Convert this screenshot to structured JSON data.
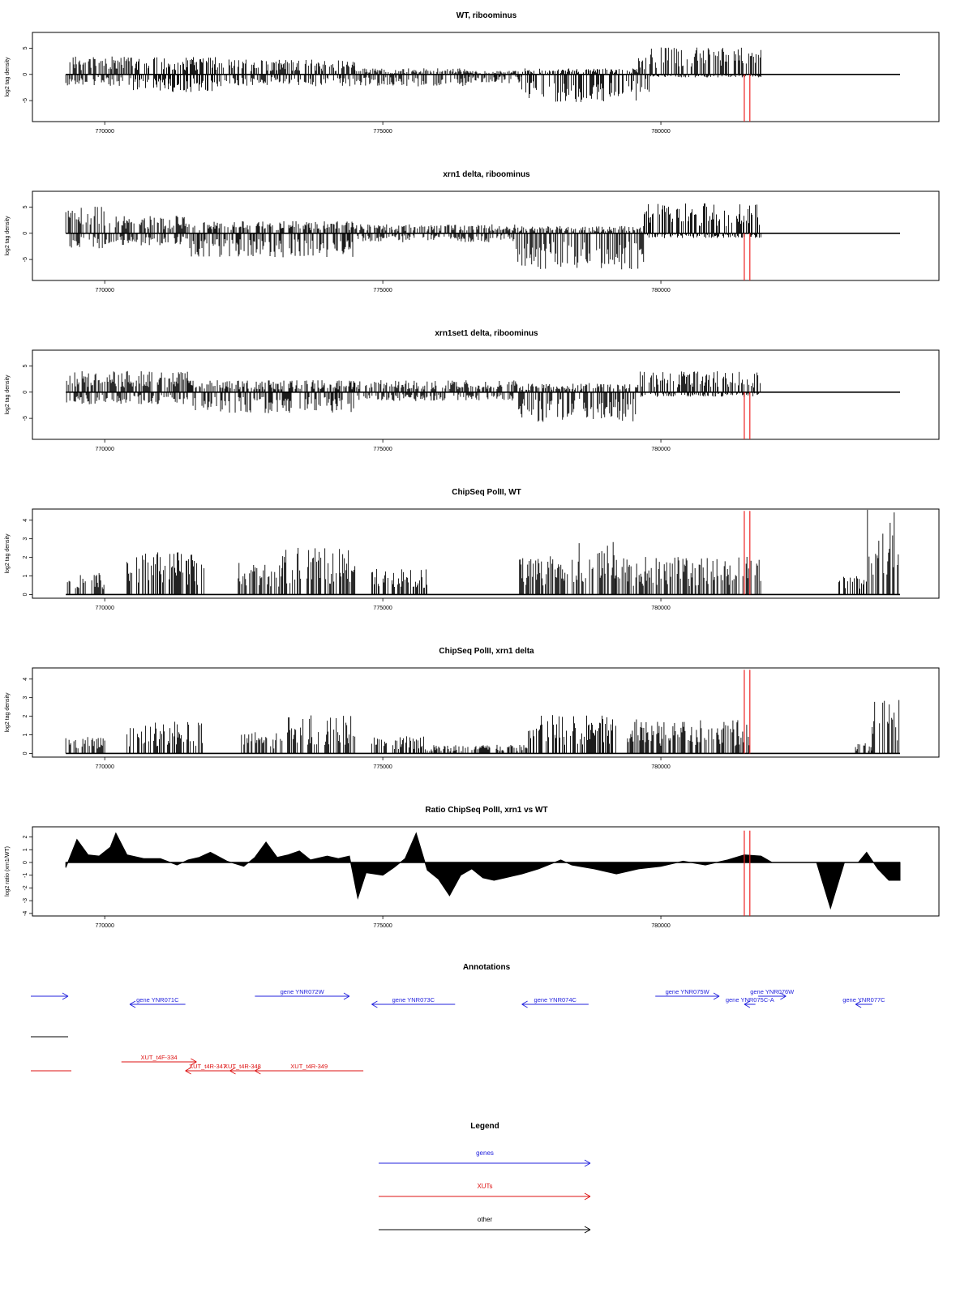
{
  "colors": {
    "gene": "#2222dd",
    "xut": "#dd1111",
    "other": "#000000",
    "marker": "#ee2222",
    "frame": "#000000"
  },
  "chart_data": [
    {
      "type": "bar",
      "title": "WT, riboominus",
      "ylabel": "log2 tag density",
      "xlim": [
        768700,
        785000
      ],
      "ylim": [
        -9,
        8
      ],
      "yticks": [
        -5,
        0,
        5
      ],
      "xticks": [
        770000,
        775000,
        780000
      ],
      "data_start": 769300,
      "data_end": 784300,
      "markers": [
        781500,
        781600
      ],
      "marker_range": [
        -9,
        0
      ],
      "profile": [
        {
          "x": [
            769300,
            770500
          ],
          "pos": 3,
          "neg": -2
        },
        {
          "x": [
            770500,
            772000
          ],
          "pos": 3,
          "neg": -3
        },
        {
          "x": [
            772000,
            774500
          ],
          "pos": 2.5,
          "neg": -2
        },
        {
          "x": [
            774500,
            776500
          ],
          "pos": 1,
          "neg": -2
        },
        {
          "x": [
            776500,
            777500
          ],
          "pos": 0.6,
          "neg": -1.5
        },
        {
          "x": [
            777500,
            779600
          ],
          "pos": 1,
          "neg": -5
        },
        {
          "x": [
            779600,
            779800
          ],
          "pos": 3,
          "neg": -3
        },
        {
          "x": [
            779800,
            781800
          ],
          "pos": 4.5,
          "neg": -0.5
        }
      ]
    },
    {
      "type": "bar",
      "title": "xrn1 delta, riboominus",
      "ylabel": "log2 tag density",
      "xlim": [
        768700,
        785000
      ],
      "ylim": [
        -9,
        8
      ],
      "yticks": [
        -5,
        0,
        5
      ],
      "xticks": [
        770000,
        775000,
        780000
      ],
      "data_start": 769300,
      "data_end": 784300,
      "markers": [
        781500,
        781600
      ],
      "marker_range": [
        -9,
        0
      ],
      "profile": [
        {
          "x": [
            769300,
            770000
          ],
          "pos": 4.5,
          "neg": -2.5
        },
        {
          "x": [
            770000,
            771500
          ],
          "pos": 3,
          "neg": -2
        },
        {
          "x": [
            771500,
            774500
          ],
          "pos": 2,
          "neg": -4
        },
        {
          "x": [
            774500,
            777400
          ],
          "pos": 1.5,
          "neg": -1.5
        },
        {
          "x": [
            777400,
            779700
          ],
          "pos": 1.2,
          "neg": -6
        },
        {
          "x": [
            779700,
            781800
          ],
          "pos": 5,
          "neg": -0.8
        }
      ]
    },
    {
      "type": "bar",
      "title": "xrn1set1 delta, riboominus",
      "ylabel": "log2 tag density",
      "xlim": [
        768700,
        785000
      ],
      "ylim": [
        -9,
        8
      ],
      "yticks": [
        -5,
        0,
        5
      ],
      "xticks": [
        770000,
        775000,
        780000
      ],
      "data_start": 769300,
      "data_end": 784300,
      "markers": [
        781500,
        781600
      ],
      "marker_range": [
        -9,
        0
      ],
      "profile": [
        {
          "x": [
            769300,
            771500
          ],
          "pos": 3.5,
          "neg": -2
        },
        {
          "x": [
            771500,
            774500
          ],
          "pos": 2,
          "neg": -3.5
        },
        {
          "x": [
            774500,
            777400
          ],
          "pos": 2,
          "neg": -1.5
        },
        {
          "x": [
            777400,
            779600
          ],
          "pos": 1.5,
          "neg": -5
        },
        {
          "x": [
            779600,
            781800
          ],
          "pos": 3.5,
          "neg": -0.8
        }
      ]
    },
    {
      "type": "bar",
      "title": "ChipSeq PolII, WT",
      "ylabel": "log2 tag density",
      "xlim": [
        768700,
        785000
      ],
      "ylim": [
        -0.2,
        4.6
      ],
      "yticks": [
        0,
        1,
        2,
        3,
        4
      ],
      "xticks": [
        770000,
        775000,
        780000
      ],
      "data_start": 769300,
      "data_end": 784300,
      "markers": [
        781500,
        781600
      ],
      "marker_range": [
        0,
        4.5
      ],
      "profile": [
        {
          "x": [
            769300,
            770000
          ],
          "pos": 1,
          "neg": 0
        },
        {
          "x": [
            770400,
            771800
          ],
          "pos": 2,
          "neg": 0
        },
        {
          "x": [
            772400,
            773200
          ],
          "pos": 1.5,
          "neg": 0
        },
        {
          "x": [
            773200,
            774500
          ],
          "pos": 2.2,
          "neg": 0
        },
        {
          "x": [
            774800,
            775800
          ],
          "pos": 1.2,
          "neg": 0
        },
        {
          "x": [
            777400,
            778500
          ],
          "pos": 1.8,
          "neg": 0
        },
        {
          "x": [
            778500,
            779200
          ],
          "pos": 2.5,
          "neg": 0
        },
        {
          "x": [
            779200,
            781800
          ],
          "pos": 1.8,
          "neg": 0
        },
        {
          "x": [
            783200,
            783700
          ],
          "pos": 1,
          "neg": 0
        },
        {
          "x": [
            783700,
            784300
          ],
          "pos": 4,
          "neg": 0
        }
      ]
    },
    {
      "type": "bar",
      "title": "ChipSeq PolII, xrn1 delta",
      "ylabel": "log2 tag density",
      "xlim": [
        768700,
        785000
      ],
      "ylim": [
        -0.2,
        4.6
      ],
      "yticks": [
        0,
        1,
        2,
        3,
        4
      ],
      "xticks": [
        770000,
        775000,
        780000
      ],
      "data_start": 769300,
      "data_end": 784300,
      "markers": [
        781500,
        781600
      ],
      "marker_range": [
        0,
        4.5
      ],
      "profile": [
        {
          "x": [
            769300,
            770000
          ],
          "pos": 0.8,
          "neg": 0
        },
        {
          "x": [
            770400,
            771800
          ],
          "pos": 1.5,
          "neg": 0
        },
        {
          "x": [
            772400,
            773200
          ],
          "pos": 1,
          "neg": 0
        },
        {
          "x": [
            773200,
            774500
          ],
          "pos": 1.8,
          "neg": 0
        },
        {
          "x": [
            774800,
            775800
          ],
          "pos": 0.8,
          "neg": 0
        },
        {
          "x": [
            775800,
            777600
          ],
          "pos": 0.4,
          "neg": 0
        },
        {
          "x": [
            777600,
            779200
          ],
          "pos": 1.8,
          "neg": 0
        },
        {
          "x": [
            779400,
            781600
          ],
          "pos": 1.6,
          "neg": 0
        },
        {
          "x": [
            783500,
            783800
          ],
          "pos": 0.5,
          "neg": 0
        },
        {
          "x": [
            783800,
            784300
          ],
          "pos": 2.8,
          "neg": 0
        }
      ]
    },
    {
      "type": "area",
      "title": "Ratio ChipSeq PolII, xrn1 vs WT",
      "ylabel": "log2 ratio (xrn1/WT)",
      "xlim": [
        768700,
        785000
      ],
      "ylim": [
        -4.2,
        2.8
      ],
      "yticks": [
        -4,
        -3,
        -2,
        -1,
        0,
        1,
        2
      ],
      "xticks": [
        770000,
        775000,
        780000
      ],
      "data_start": 769300,
      "data_end": 784300,
      "markers": [
        781500,
        781600
      ],
      "marker_range": [
        -4.2,
        2.5
      ],
      "points": [
        [
          769300,
          -0.4
        ],
        [
          769500,
          1.8
        ],
        [
          769700,
          0.6
        ],
        [
          769900,
          0.5
        ],
        [
          770100,
          1.2
        ],
        [
          770200,
          2.3
        ],
        [
          770400,
          0.6
        ],
        [
          770700,
          0.3
        ],
        [
          771000,
          0.3
        ],
        [
          771300,
          -0.2
        ],
        [
          771500,
          0.2
        ],
        [
          771700,
          0.4
        ],
        [
          771900,
          0.8
        ],
        [
          772200,
          0.1
        ],
        [
          772500,
          -0.3
        ],
        [
          772700,
          0.4
        ],
        [
          772900,
          1.6
        ],
        [
          773100,
          0.4
        ],
        [
          773300,
          0.6
        ],
        [
          773500,
          0.9
        ],
        [
          773700,
          0.2
        ],
        [
          774000,
          0.5
        ],
        [
          774200,
          0.3
        ],
        [
          774400,
          0.5
        ],
        [
          774550,
          -2.8
        ],
        [
          774700,
          -0.8
        ],
        [
          775000,
          -1
        ],
        [
          775200,
          -0.4
        ],
        [
          775400,
          0.3
        ],
        [
          775600,
          2.3
        ],
        [
          775800,
          -0.6
        ],
        [
          776000,
          -1.3
        ],
        [
          776200,
          -2.6
        ],
        [
          776400,
          -1
        ],
        [
          776600,
          -0.5
        ],
        [
          776800,
          -1.2
        ],
        [
          777000,
          -1.4
        ],
        [
          777200,
          -1.2
        ],
        [
          777500,
          -0.9
        ],
        [
          777800,
          -0.5
        ],
        [
          778200,
          0.2
        ],
        [
          778400,
          -0.2
        ],
        [
          778800,
          -0.5
        ],
        [
          779200,
          -0.9
        ],
        [
          779600,
          -0.5
        ],
        [
          780000,
          -0.3
        ],
        [
          780400,
          0.1
        ],
        [
          780800,
          -0.2
        ],
        [
          781200,
          0.2
        ],
        [
          781500,
          0.6
        ],
        [
          781800,
          0.5
        ],
        [
          782000,
          0
        ],
        [
          782800,
          0
        ],
        [
          783050,
          -3.6
        ],
        [
          783300,
          0
        ],
        [
          783550,
          0
        ],
        [
          783700,
          0.8
        ],
        [
          783900,
          -0.5
        ],
        [
          784100,
          -1.4
        ],
        [
          784300,
          -1.4
        ]
      ]
    }
  ],
  "annotations": {
    "title": "Annotations",
    "genes": [
      {
        "label": "gene YNR071C",
        "start": 770450,
        "end": 771450,
        "dir": -1,
        "row": 1
      },
      {
        "label": "gene YNR072W",
        "start": 772700,
        "end": 774400,
        "dir": 1,
        "row": 0
      },
      {
        "label": "gene YNR073C",
        "start": 774800,
        "end": 776300,
        "dir": -1,
        "row": 1
      },
      {
        "label": "gene YNR074C",
        "start": 777500,
        "end": 778700,
        "dir": -1,
        "row": 1
      },
      {
        "label": "gene YNR075W",
        "start": 779900,
        "end": 781050,
        "dir": 1,
        "row": 0
      },
      {
        "label": "gene YNR075C-A",
        "start": 781500,
        "end": 781700,
        "dir": -1,
        "row": 1
      },
      {
        "label": "gene YNR076W",
        "start": 781750,
        "end": 782250,
        "dir": 1,
        "row": 0
      },
      {
        "label": "gene YNR077C",
        "start": 783500,
        "end": 783800,
        "dir": -1,
        "row": 1
      }
    ],
    "xuts": [
      {
        "label": "XUT_t4F-334",
        "start": 770300,
        "end": 771650,
        "dir": 1,
        "row": 0
      },
      {
        "label": "XUT_t4R-347",
        "start": 771450,
        "end": 772250,
        "dir": -1,
        "row": 1
      },
      {
        "label": "XUT_t4R-348",
        "start": 772250,
        "end": 772700,
        "dir": -1,
        "row": 1
      },
      {
        "label": "XUT_t4R-349",
        "start": 772700,
        "end": 774650,
        "dir": -1,
        "row": 1
      }
    ]
  },
  "legend": {
    "title": "Legend",
    "items": [
      {
        "label": "genes",
        "kind": "gene"
      },
      {
        "label": "XUTs",
        "kind": "xut"
      },
      {
        "label": "other",
        "kind": "other"
      }
    ]
  }
}
